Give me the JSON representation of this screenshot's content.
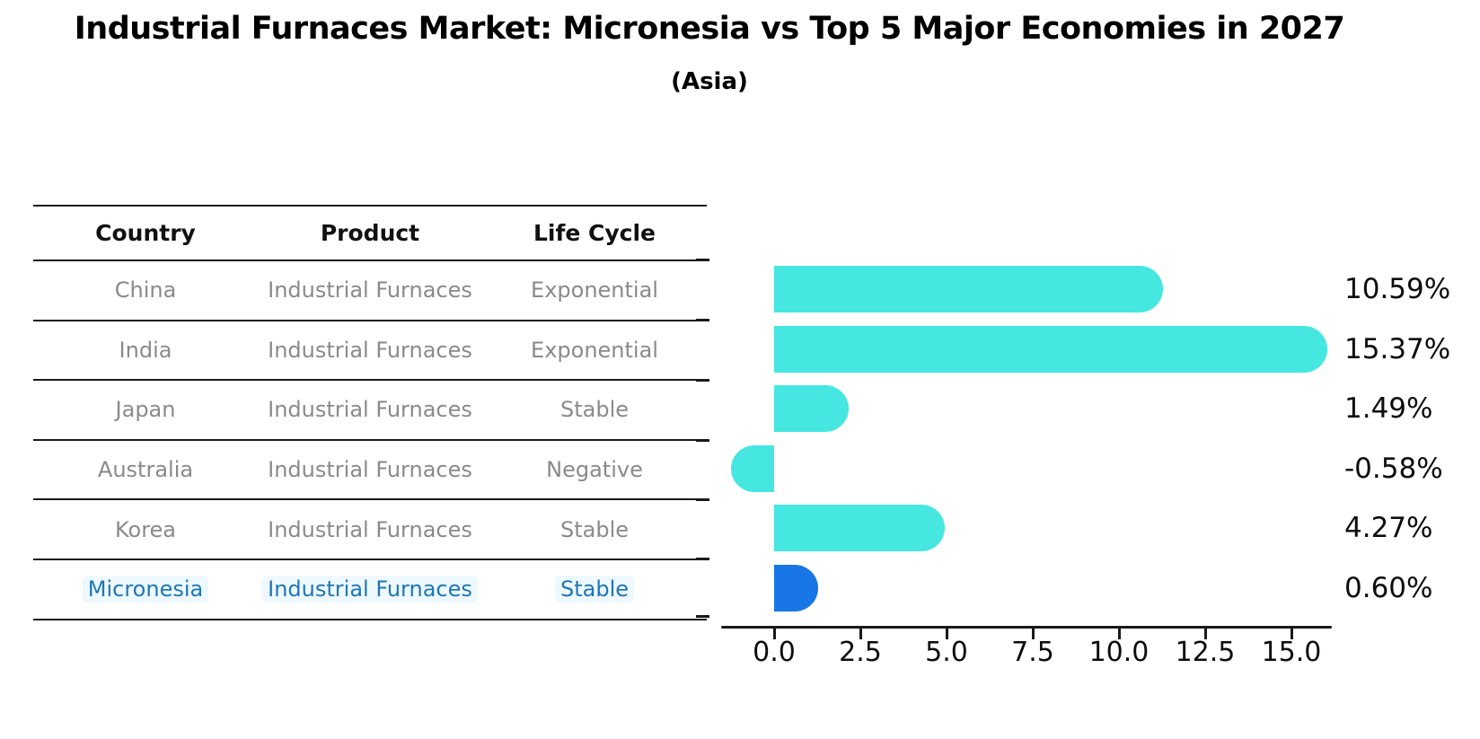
{
  "title": "Industrial Furnaces Market: Micronesia vs Top 5 Major Economies in 2027",
  "subtitle": "(Asia)",
  "table": {
    "headers": [
      "Country",
      "Product",
      "Life Cycle"
    ],
    "rows": [
      {
        "country": "China",
        "product": "Industrial Furnaces",
        "life_cycle": "Exponential",
        "highlight": false
      },
      {
        "country": "India",
        "product": "Industrial Furnaces",
        "life_cycle": "Exponential",
        "highlight": false
      },
      {
        "country": "Japan",
        "product": "Industrial Furnaces",
        "life_cycle": "Stable",
        "highlight": false
      },
      {
        "country": "Australia",
        "product": "Industrial Furnaces",
        "life_cycle": "Negative",
        "highlight": false
      },
      {
        "country": "Korea",
        "product": "Industrial Furnaces",
        "life_cycle": "Stable",
        "highlight": false
      },
      {
        "country": "Micronesia",
        "product": "Industrial Furnaces",
        "life_cycle": "Stable",
        "highlight": true
      }
    ]
  },
  "chart_data": {
    "type": "bar",
    "orientation": "horizontal",
    "title": "Industrial Furnaces Market: Micronesia vs Top 5 Major Economies in 2027",
    "subtitle": "(Asia)",
    "categories": [
      "China",
      "India",
      "Japan",
      "Australia",
      "Korea",
      "Micronesia"
    ],
    "values": [
      10.59,
      15.37,
      1.49,
      -0.58,
      4.27,
      0.6
    ],
    "value_labels": [
      "10.59%",
      "15.37%",
      "1.49%",
      "-0.58%",
      "4.27%",
      "0.60%"
    ],
    "x_ticks": [
      0.0,
      2.5,
      5.0,
      7.5,
      10.0,
      12.5,
      15.0
    ],
    "x_tick_labels": [
      "0.0",
      "2.5",
      "5.0",
      "7.5",
      "10.0",
      "12.5",
      "15.0"
    ],
    "xlim": [
      -1.5,
      16.2
    ],
    "grid": false,
    "legend": false,
    "bar_color": "#46E6E1",
    "highlight_color": "#1976E6",
    "highlight_index": 5,
    "highlight_text_color": "#1f77b4",
    "axis_color": "#1a1a1a",
    "label_color": "#0d0d0d"
  }
}
